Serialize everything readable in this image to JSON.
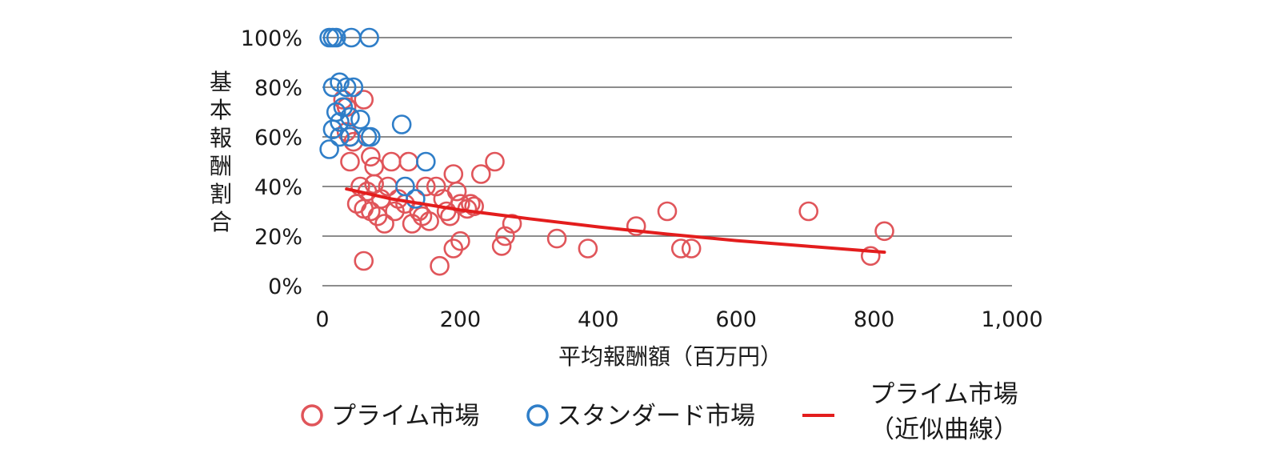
{
  "chart_data": {
    "type": "scatter",
    "xlabel": "平均報酬額（百万円）",
    "ylabel": "基本報酬割合",
    "xlim": [
      0,
      1000
    ],
    "ylim": [
      0,
      100
    ],
    "x_ticks": [
      "0",
      "200",
      "400",
      "600",
      "800",
      "1,000"
    ],
    "y_ticks": [
      "0%",
      "20%",
      "40%",
      "60%",
      "80%",
      "100%"
    ],
    "grid": "horizontal",
    "legend_position": "bottom",
    "series": [
      {
        "name": "プライム市場",
        "marker": "open-circle",
        "color": "#e0555a",
        "points": [
          [
            30,
            75
          ],
          [
            35,
            72
          ],
          [
            60,
            75
          ],
          [
            35,
            62
          ],
          [
            40,
            60
          ],
          [
            45,
            58
          ],
          [
            40,
            50
          ],
          [
            70,
            52
          ],
          [
            75,
            48
          ],
          [
            100,
            50
          ],
          [
            125,
            50
          ],
          [
            55,
            40
          ],
          [
            65,
            38
          ],
          [
            75,
            41
          ],
          [
            85,
            35
          ],
          [
            95,
            40
          ],
          [
            110,
            35
          ],
          [
            50,
            33
          ],
          [
            60,
            31
          ],
          [
            70,
            30
          ],
          [
            80,
            28
          ],
          [
            90,
            25
          ],
          [
            105,
            30
          ],
          [
            120,
            33
          ],
          [
            130,
            25
          ],
          [
            140,
            30
          ],
          [
            145,
            28
          ],
          [
            155,
            26
          ],
          [
            150,
            40
          ],
          [
            165,
            40
          ],
          [
            175,
            35
          ],
          [
            180,
            30
          ],
          [
            185,
            28
          ],
          [
            190,
            45
          ],
          [
            195,
            38
          ],
          [
            200,
            33
          ],
          [
            210,
            31
          ],
          [
            215,
            33
          ],
          [
            220,
            32
          ],
          [
            230,
            45
          ],
          [
            250,
            50
          ],
          [
            260,
            16
          ],
          [
            265,
            20
          ],
          [
            275,
            25
          ],
          [
            60,
            10
          ],
          [
            170,
            8
          ],
          [
            190,
            15
          ],
          [
            200,
            18
          ],
          [
            340,
            19
          ],
          [
            385,
            15
          ],
          [
            455,
            24
          ],
          [
            500,
            30
          ],
          [
            520,
            15
          ],
          [
            535,
            15
          ],
          [
            705,
            30
          ],
          [
            795,
            12
          ],
          [
            815,
            22
          ]
        ]
      },
      {
        "name": "スタンダード市場",
        "marker": "open-circle",
        "color": "#2f7ec8",
        "points": [
          [
            10,
            100
          ],
          [
            15,
            100
          ],
          [
            20,
            100
          ],
          [
            42,
            100
          ],
          [
            68,
            100
          ],
          [
            15,
            80
          ],
          [
            25,
            82
          ],
          [
            35,
            80
          ],
          [
            45,
            80
          ],
          [
            20,
            70
          ],
          [
            30,
            72
          ],
          [
            25,
            66
          ],
          [
            40,
            68
          ],
          [
            55,
            67
          ],
          [
            15,
            63
          ],
          [
            25,
            60
          ],
          [
            40,
            60
          ],
          [
            65,
            60
          ],
          [
            70,
            60
          ],
          [
            10,
            55
          ],
          [
            115,
            65
          ],
          [
            150,
            50
          ],
          [
            120,
            40
          ],
          [
            135,
            35
          ]
        ]
      },
      {
        "name": "プライム市場（近似曲線）",
        "type": "line",
        "color": "#e31d1d",
        "points": [
          [
            35,
            39
          ],
          [
            100,
            35
          ],
          [
            200,
            30.5
          ],
          [
            300,
            27
          ],
          [
            400,
            23.7
          ],
          [
            500,
            20.8
          ],
          [
            600,
            18.2
          ],
          [
            700,
            16
          ],
          [
            815,
            13.5
          ]
        ]
      }
    ]
  },
  "legend": {
    "item1": "プライム市場",
    "item2": "スタンダード市場",
    "item3_line1": "プライム市場",
    "item3_line2": "（近似曲線）"
  }
}
